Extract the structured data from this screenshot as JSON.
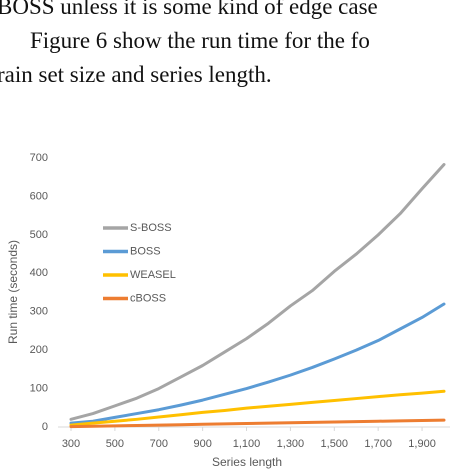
{
  "text_lines": [
    "BOSS unless it is some kind of edge case",
    "Figure 6 show the run time for the fo",
    "rain set size and series length."
  ],
  "chart_data": {
    "type": "line",
    "x_label": "Series length",
    "y_label": "Run time (seconds)",
    "x": [
      300,
      400,
      500,
      600,
      700,
      800,
      900,
      1000,
      1100,
      1200,
      1300,
      1400,
      1500,
      1600,
      1700,
      1800,
      1900,
      2000
    ],
    "series": [
      {
        "name": "S-BOSS",
        "color": "#a5a5a5",
        "values": [
          20,
          35,
          55,
          75,
          100,
          130,
          160,
          195,
          230,
          270,
          315,
          355,
          405,
          450,
          500,
          555,
          620,
          683
        ]
      },
      {
        "name": "BOSS",
        "color": "#5b9bd5",
        "values": [
          10,
          15,
          25,
          35,
          45,
          57,
          70,
          85,
          100,
          117,
          135,
          155,
          177,
          200,
          225,
          255,
          285,
          320
        ]
      },
      {
        "name": "WEASEL",
        "color": "#ffc000",
        "values": [
          5,
          10,
          15,
          20,
          26,
          32,
          38,
          43,
          49,
          54,
          59,
          64,
          69,
          74,
          79,
          84,
          88,
          93
        ]
      },
      {
        "name": "cBOSS",
        "color": "#ed7d31",
        "values": [
          1,
          2,
          3,
          4,
          5,
          6,
          7,
          8,
          9,
          10,
          11,
          12,
          13,
          14,
          15,
          16,
          17,
          18
        ]
      }
    ],
    "xlim": [
      300,
      2000
    ],
    "xticks": [
      300,
      500,
      700,
      900,
      {
        "value": 1100,
        "label": "1,100"
      },
      {
        "value": 1300,
        "label": "1,300"
      },
      {
        "value": 1500,
        "label": "1,500"
      },
      {
        "value": 1700,
        "label": "1,700"
      },
      {
        "value": 1900,
        "label": "1,900"
      }
    ],
    "ylim": [
      0,
      700
    ],
    "yticks": [
      0,
      100,
      200,
      300,
      400,
      500,
      600,
      700
    ],
    "legend": "upper left"
  }
}
